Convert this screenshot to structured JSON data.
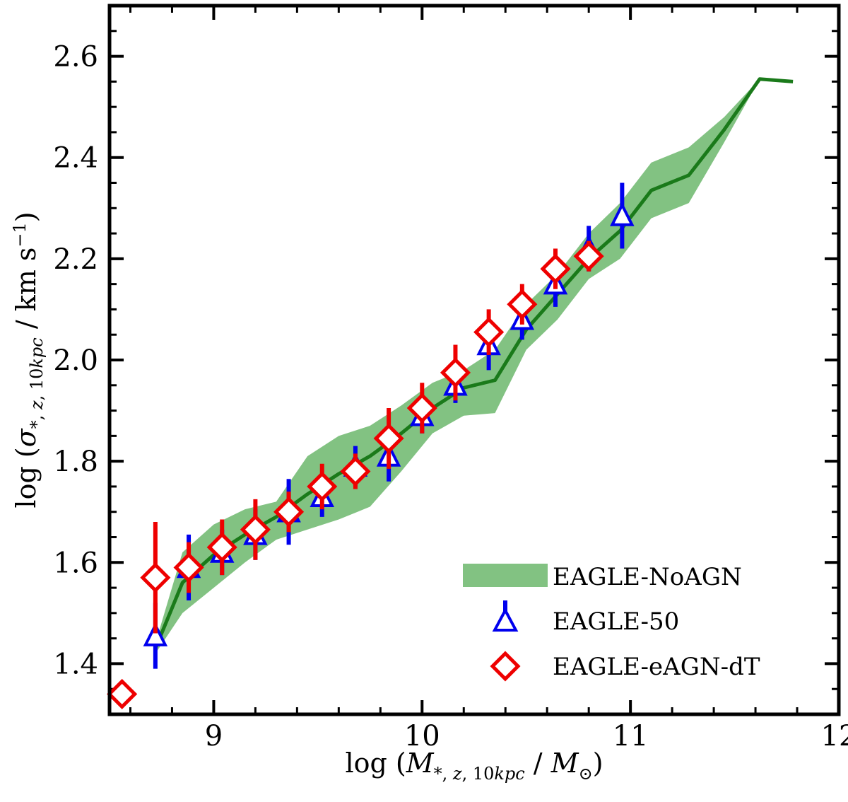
{
  "chart_data": {
    "type": "line",
    "xlabel": "log (M*, z, 10kpc / M⊙)",
    "ylabel": "log (σ*, z, 10kpc / km s⁻¹)",
    "xlim": [
      8.5,
      12.0
    ],
    "ylim": [
      1.3,
      2.7
    ],
    "xticks": [
      9,
      10,
      11,
      12
    ],
    "xtick_labels": [
      "9",
      "10",
      "11",
      "12"
    ],
    "yticks": [
      1.4,
      1.6,
      1.8,
      2.0,
      2.2,
      2.4,
      2.6
    ],
    "ytick_labels": [
      "1.4",
      "1.6",
      "1.8",
      "2.0",
      "2.2",
      "2.4",
      "2.6"
    ],
    "legend_position": "lower-right",
    "series": [
      {
        "name": "EAGLE-NoAGN",
        "kind": "line-with-band",
        "line_color": "#1a7a1a",
        "band_color": "#82c282",
        "x": [
          8.72,
          8.85,
          9.0,
          9.15,
          9.3,
          9.45,
          9.6,
          9.75,
          9.9,
          10.05,
          10.2,
          10.35,
          10.5,
          10.65,
          10.8,
          10.95,
          11.1,
          11.28,
          11.45,
          11.62,
          11.78
        ],
        "y": [
          1.43,
          1.56,
          1.615,
          1.655,
          1.69,
          1.735,
          1.775,
          1.81,
          1.855,
          1.905,
          1.945,
          1.96,
          2.06,
          2.13,
          2.2,
          2.255,
          2.335,
          2.365,
          2.455,
          2.555,
          2.55
        ],
        "y_low": [
          1.42,
          1.5,
          1.55,
          1.6,
          1.645,
          1.665,
          1.685,
          1.71,
          1.78,
          1.855,
          1.89,
          1.895,
          2.02,
          2.08,
          2.16,
          2.2,
          2.28,
          2.31,
          2.43,
          2.555,
          2.55
        ],
        "y_high": [
          1.44,
          1.62,
          1.675,
          1.705,
          1.72,
          1.81,
          1.85,
          1.87,
          1.91,
          1.955,
          1.98,
          2.02,
          2.11,
          2.17,
          2.25,
          2.31,
          2.39,
          2.42,
          2.48,
          2.555,
          2.55
        ]
      },
      {
        "name": "EAGLE-50",
        "kind": "errorbar",
        "marker": "triangle",
        "color": "#0000ee",
        "x": [
          8.72,
          8.88,
          9.04,
          9.2,
          9.36,
          9.52,
          9.68,
          9.84,
          10.0,
          10.16,
          10.32,
          10.48,
          10.64,
          10.8,
          10.96
        ],
        "y": [
          1.455,
          1.59,
          1.62,
          1.655,
          1.7,
          1.73,
          1.79,
          1.81,
          1.89,
          1.95,
          2.03,
          2.08,
          2.15,
          2.22,
          2.285
        ],
        "err": [
          0.065,
          0.065,
          0.045,
          0.05,
          0.065,
          0.04,
          0.04,
          0.05,
          0.035,
          0.035,
          0.05,
          0.04,
          0.045,
          0.045,
          0.065
        ]
      },
      {
        "name": "EAGLE-eAGN-dT",
        "kind": "errorbar",
        "marker": "diamond",
        "color": "#ee0000",
        "x": [
          8.56,
          8.72,
          8.88,
          9.04,
          9.2,
          9.36,
          9.52,
          9.68,
          9.84,
          10.0,
          10.16,
          10.32,
          10.48,
          10.64,
          10.8
        ],
        "y": [
          1.34,
          1.57,
          1.59,
          1.63,
          1.665,
          1.7,
          1.75,
          1.78,
          1.845,
          1.905,
          1.975,
          2.055,
          2.11,
          2.18,
          2.205
        ],
        "err": [
          0.0,
          0.11,
          0.05,
          0.055,
          0.06,
          0.04,
          0.045,
          0.035,
          0.06,
          0.05,
          0.055,
          0.045,
          0.04,
          0.04,
          0.03
        ]
      }
    ]
  }
}
